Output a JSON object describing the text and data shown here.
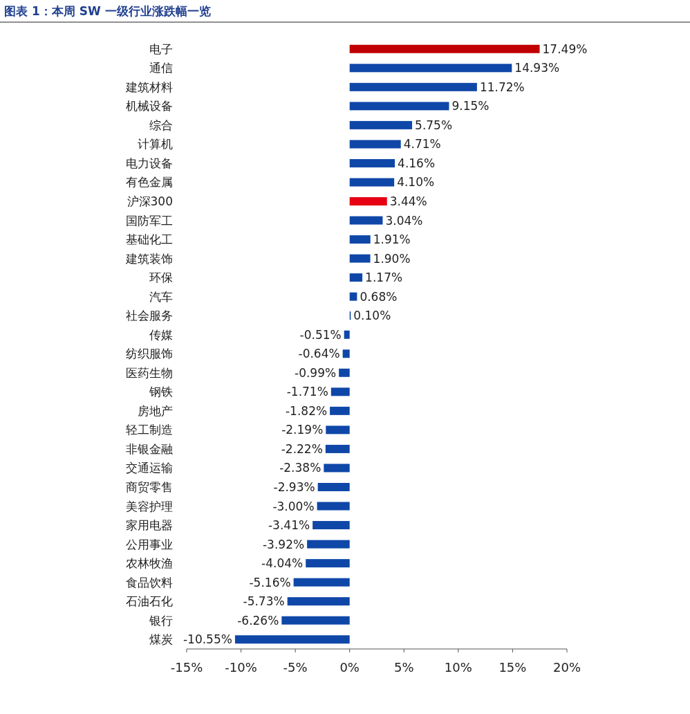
{
  "chart_data": {
    "type": "bar",
    "orientation": "horizontal",
    "title": "图表 1：本周 SW 一级行业涨跌幅一览",
    "categories": [
      "电子",
      "通信",
      "建筑材料",
      "机械设备",
      "综合",
      "计算机",
      "电力设备",
      "有色金属",
      "沪深300",
      "国防军工",
      "基础化工",
      "建筑装饰",
      "环保",
      "汽车",
      "社会服务",
      "传媒",
      "纺织服饰",
      "医药生物",
      "钢铁",
      "房地产",
      "轻工制造",
      "非银金融",
      "交通运输",
      "商贸零售",
      "美容护理",
      "家用电器",
      "公用事业",
      "农林牧渔",
      "食品饮料",
      "石油石化",
      "银行",
      "煤炭"
    ],
    "values": [
      17.49,
      14.93,
      11.72,
      9.15,
      5.75,
      4.71,
      4.16,
      4.1,
      3.44,
      3.04,
      1.91,
      1.9,
      1.17,
      0.68,
      0.1,
      -0.51,
      -0.64,
      -0.99,
      -1.71,
      -1.82,
      -2.19,
      -2.22,
      -2.38,
      -2.93,
      -3.0,
      -3.41,
      -3.92,
      -4.04,
      -5.16,
      -5.73,
      -6.26,
      -10.55
    ],
    "value_labels": [
      "17.49%",
      "14.93%",
      "11.72%",
      "9.15%",
      "5.75%",
      "4.71%",
      "4.16%",
      "4.10%",
      "3.44%",
      "3.04%",
      "1.91%",
      "1.90%",
      "1.17%",
      "0.68%",
      "0.10%",
      "-0.51%",
      "-0.64%",
      "-0.99%",
      "-1.71%",
      "-1.82%",
      "-2.19%",
      "-2.22%",
      "-2.38%",
      "-2.93%",
      "-3.00%",
      "-3.41%",
      "-3.92%",
      "-4.04%",
      "-5.16%",
      "-5.73%",
      "-6.26%",
      "-10.55%"
    ],
    "colors": [
      "#c00000",
      "#0f47a8",
      "#0f47a8",
      "#0f47a8",
      "#0f47a8",
      "#0f47a8",
      "#0f47a8",
      "#0f47a8",
      "#e60012",
      "#0f47a8",
      "#0f47a8",
      "#0f47a8",
      "#0f47a8",
      "#0f47a8",
      "#0f47a8",
      "#0f47a8",
      "#0f47a8",
      "#0f47a8",
      "#0f47a8",
      "#0f47a8",
      "#0f47a8",
      "#0f47a8",
      "#0f47a8",
      "#0f47a8",
      "#0f47a8",
      "#0f47a8",
      "#0f47a8",
      "#0f47a8",
      "#0f47a8",
      "#0f47a8",
      "#0f47a8",
      "#0f47a8"
    ],
    "xlim": [
      -15,
      20
    ],
    "xticks": [
      {
        "value": -15,
        "label": "-15%"
      },
      {
        "value": -10,
        "label": "-10%"
      },
      {
        "value": -5,
        "label": "-5%"
      },
      {
        "value": 0,
        "label": "0%"
      },
      {
        "value": 5,
        "label": "5%"
      },
      {
        "value": 10,
        "label": "10%"
      },
      {
        "value": 15,
        "label": "15%"
      },
      {
        "value": 20,
        "label": "20%"
      }
    ],
    "grid": false
  }
}
